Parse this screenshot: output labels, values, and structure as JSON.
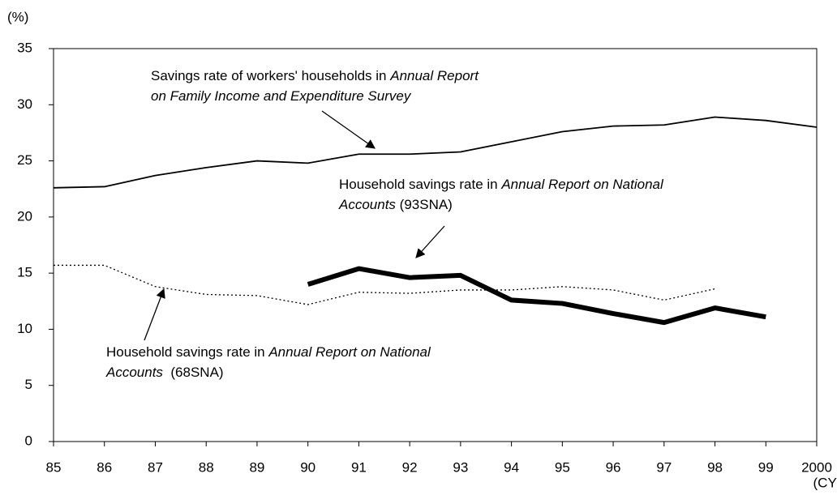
{
  "chart_data": {
    "type": "line",
    "y_label": "(%)",
    "x_label": "(CY)",
    "categories": [
      "85",
      "86",
      "87",
      "88",
      "89",
      "90",
      "91",
      "92",
      "93",
      "94",
      "95",
      "96",
      "97",
      "98",
      "99",
      "2000"
    ],
    "ylim": [
      0,
      35
    ],
    "yticks": [
      0,
      5,
      10,
      15,
      20,
      25,
      30,
      35
    ],
    "series": [
      {
        "color": "#000000",
        "style": "solid",
        "values": [
          22.6,
          22.7,
          23.7,
          24.4,
          25.0,
          24.8,
          25.6,
          25.6,
          25.8,
          26.7,
          27.6,
          28.1,
          28.2,
          28.9,
          28.6,
          28.0
        ]
      },
      {
        "color": "#000000",
        "style": "dotted",
        "values": [
          15.7,
          15.7,
          13.8,
          13.1,
          13.0,
          12.2,
          13.3,
          13.2,
          13.5,
          13.5,
          13.8,
          13.5,
          12.6,
          13.6,
          null,
          null
        ]
      },
      {
        "color": "#000000",
        "style": "bold",
        "values": [
          null,
          null,
          null,
          null,
          null,
          14.0,
          15.4,
          14.6,
          14.8,
          12.6,
          12.3,
          11.4,
          10.6,
          11.9,
          11.1,
          null
        ]
      }
    ],
    "annotations": [
      {
        "lines": [
          [
            {
              "text": "Savings rate of workers' households in "
            },
            {
              "text": "Annual Report",
              "italic": true
            }
          ],
          [
            {
              "text": "on Family Income and Expenditure Survey",
              "italic": true
            }
          ]
        ]
      },
      {
        "lines": [
          [
            {
              "text": "Household savings rate in "
            },
            {
              "text": "Annual Report on National",
              "italic": true
            }
          ],
          [
            {
              "text": "Accounts",
              "italic": true
            },
            {
              "text": " (93SNA)"
            }
          ]
        ]
      },
      {
        "lines": [
          [
            {
              "text": "Household savings rate in "
            },
            {
              "text": "Annual Report on National",
              "italic": true
            }
          ],
          [
            {
              "text": "Accounts",
              "italic": true
            },
            {
              "text": "  (68SNA)"
            }
          ]
        ]
      }
    ]
  }
}
